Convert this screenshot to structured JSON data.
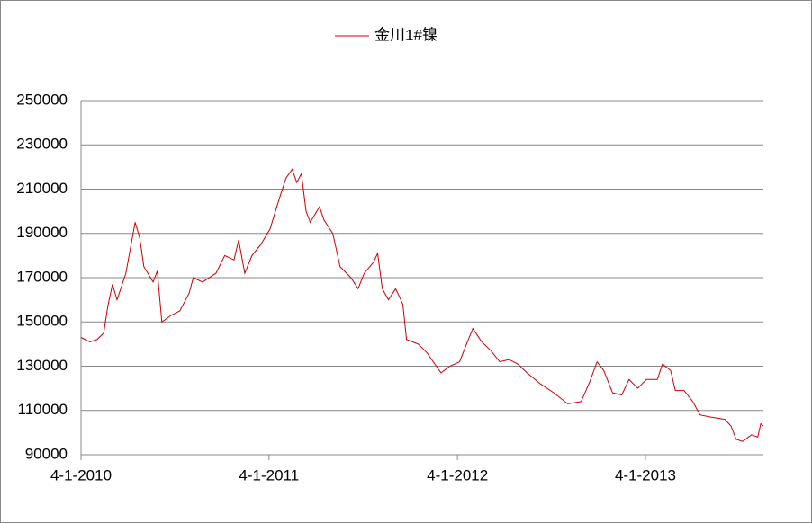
{
  "chart_data": {
    "type": "line",
    "x": [
      "2010-04-01",
      "2010-04-18",
      "2010-05-02",
      "2010-05-15",
      "2010-05-23",
      "2010-06-01",
      "2010-06-10",
      "2010-06-27",
      "2010-07-15",
      "2010-07-24",
      "2010-08-01",
      "2010-08-19",
      "2010-08-27",
      "2010-09-05",
      "2010-09-23",
      "2010-10-10",
      "2010-10-28",
      "2010-11-05",
      "2010-11-23",
      "2010-12-19",
      "2011-01-05",
      "2011-01-23",
      "2011-02-01",
      "2011-02-13",
      "2011-02-27",
      "2011-03-16",
      "2011-04-03",
      "2011-04-20",
      "2011-05-04",
      "2011-05-16",
      "2011-05-25",
      "2011-06-03",
      "2011-06-12",
      "2011-06-20",
      "2011-07-08",
      "2011-07-17",
      "2011-08-03",
      "2011-08-17",
      "2011-09-07",
      "2011-09-21",
      "2011-10-03",
      "2011-10-21",
      "2011-10-29",
      "2011-11-07",
      "2011-11-19",
      "2011-12-03",
      "2011-12-17",
      "2011-12-24",
      "2012-01-16",
      "2012-02-02",
      "2012-02-20",
      "2012-02-29",
      "2012-03-17",
      "2012-04-05",
      "2012-04-22",
      "2012-05-01",
      "2012-05-18",
      "2012-06-05",
      "2012-06-22",
      "2012-07-10",
      "2012-07-27",
      "2012-08-14",
      "2012-09-09",
      "2012-10-05",
      "2012-11-01",
      "2012-11-27",
      "2012-12-14",
      "2012-12-28",
      "2013-01-10",
      "2013-01-27",
      "2013-02-14",
      "2013-02-28",
      "2013-03-17",
      "2013-04-03",
      "2013-04-24",
      "2013-05-04",
      "2013-05-20",
      "2013-05-29",
      "2013-06-15",
      "2013-07-02",
      "2013-07-16",
      "2013-08-06",
      "2013-09-02",
      "2013-09-14",
      "2013-09-24",
      "2013-10-07",
      "2013-10-24",
      "2013-11-05",
      "2013-11-11",
      "2013-11-16"
    ],
    "series": [
      {
        "name": "金川1#镍",
        "color": "#cc0000",
        "values": [
          143000,
          141000,
          142000,
          145000,
          157000,
          167000,
          160000,
          172000,
          195000,
          188000,
          175000,
          168000,
          173000,
          150000,
          153000,
          155000,
          163000,
          170000,
          168000,
          172000,
          180000,
          178000,
          187000,
          172000,
          180000,
          185000,
          192000,
          205000,
          215000,
          219000,
          213000,
          217000,
          200000,
          195000,
          202000,
          196000,
          190000,
          175000,
          170000,
          165000,
          172000,
          177000,
          181000,
          165000,
          160000,
          165000,
          158000,
          142000,
          140000,
          136000,
          130000,
          127000,
          130000,
          132000,
          142000,
          147000,
          141000,
          137000,
          132000,
          133000,
          131000,
          127000,
          122000,
          118000,
          113000,
          114000,
          123000,
          132000,
          128000,
          118000,
          117000,
          124000,
          120000,
          124000,
          124000,
          131000,
          128000,
          119000,
          119000,
          114000,
          108000,
          107000,
          106000,
          103000,
          97000,
          96000,
          99000,
          98000,
          104000,
          103000
        ]
      }
    ],
    "xlim": [
      "2010-04-01",
      "2013-11-16"
    ],
    "xticks": [
      {
        "value": "2010-04-01",
        "label": "4-1-2010"
      },
      {
        "value": "2011-04-01",
        "label": "4-1-2011"
      },
      {
        "value": "2012-04-01",
        "label": "4-1-2012"
      },
      {
        "value": "2013-04-01",
        "label": "4-1-2013"
      }
    ],
    "ylim": [
      90000,
      250000
    ],
    "yticks": [
      90000,
      110000,
      130000,
      150000,
      170000,
      190000,
      210000,
      230000,
      250000
    ],
    "grid": true,
    "legend": "top"
  }
}
